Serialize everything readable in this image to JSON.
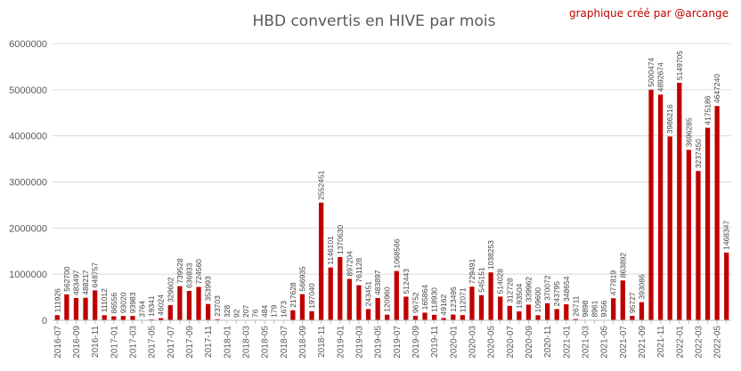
{
  "chart_data": {
    "type": "bar",
    "title": "HBD convertis en HIVE par mois",
    "credit": "graphique créé par @arcange",
    "ylim": [
      0,
      6000000
    ],
    "yticks": [
      "0",
      "1000000",
      "2000000",
      "3000000",
      "4000000",
      "5000000",
      "6000000"
    ],
    "grid": true,
    "color": "#c00000",
    "categories": [
      "2016-07",
      "2016-08",
      "2016-09",
      "2016-10",
      "2016-11",
      "2016-12",
      "2017-01",
      "2017-02",
      "2017-03",
      "2017-04",
      "2017-05",
      "2017-06",
      "2017-07",
      "2017-08",
      "2017-09",
      "2017-10",
      "2017-11",
      "2017-12",
      "2018-01",
      "2018-02",
      "2018-03",
      "2018-04",
      "2018-05",
      "2018-06",
      "2018-07",
      "2018-08",
      "2018-09",
      "2018-10",
      "2018-11",
      "2018-12",
      "2019-01",
      "2019-02",
      "2019-03",
      "2019-04",
      "2019-05",
      "2019-06",
      "2019-07",
      "2019-08",
      "2019-09",
      "2019-10",
      "2019-11",
      "2019-12",
      "2020-01",
      "2020-02",
      "2020-03",
      "2020-04",
      "2020-05",
      "2020-06",
      "2020-07",
      "2020-08",
      "2020-09",
      "2020-10",
      "2020-11",
      "2020-12",
      "2021-01",
      "2021-02",
      "2021-03",
      "2021-04",
      "2021-05",
      "2021-06",
      "2021-07",
      "2021-08",
      "2021-09",
      "2021-10",
      "2021-11",
      "2021-12",
      "2022-01",
      "2022-02",
      "2022-03",
      "2022-04",
      "2022-05",
      "2022-06"
    ],
    "xticklabels": [
      "2016-07",
      "2016-09",
      "2016-11",
      "2017-01",
      "2017-03",
      "2017-05",
      "2017-07",
      "2017-09",
      "2017-11",
      "2018-01",
      "2018-03",
      "2018-05",
      "2018-07",
      "2018-09",
      "2018-11",
      "2019-01",
      "2019-03",
      "2019-05",
      "2019-07",
      "2019-09",
      "2019-11",
      "2020-01",
      "2020-03",
      "2020-05",
      "2020-07",
      "2020-09",
      "2020-11",
      "2021-01",
      "2021-03",
      "2021-05",
      "2021-07",
      "2021-09",
      "2021-11",
      "2022-01",
      "2022-03",
      "2022-05"
    ],
    "values": [
      111926,
      562700,
      483497,
      488217,
      648757,
      111012,
      86556,
      93020,
      93983,
      3764,
      19341,
      46024,
      329602,
      739528,
      636933,
      724560,
      353993,
      23703,
      328,
      92,
      207,
      76,
      484,
      179,
      1673,
      217628,
      566935,
      197040,
      2552451,
      1146101,
      1370630,
      897204,
      761128,
      243451,
      483897,
      120960,
      1068566,
      512443,
      96752,
      165864,
      118930,
      49162,
      123495,
      112071,
      729491,
      545151,
      1038253,
      514028,
      312728,
      193504,
      339962,
      109600,
      370072,
      243795,
      348654,
      26711,
      9898,
      8961,
      9356,
      477819,
      863892,
      95727,
      393086,
      5000474,
      4892674,
      3986216,
      5149705,
      3696285,
      3237450,
      4175186,
      4647240,
      1468347
    ],
    "labels": [
      "111926",
      "562700",
      "483497",
      "488217",
      "648757",
      "111012",
      "86556",
      "93020",
      "93983",
      "3764",
      "19341",
      "46024",
      "329602",
      "739528",
      "636933",
      "724560",
      "353993",
      "23703",
      "328",
      "92",
      "207",
      "76",
      "484",
      "179",
      "1673",
      "217628",
      "566935",
      "197040",
      "2552451",
      "1146101",
      "1370630",
      "897204",
      "761128",
      "243451",
      "483897",
      "120960",
      "1068566",
      "512443",
      "96752",
      "165864",
      "118930",
      "49162",
      "123495",
      "112071",
      "729491",
      "545151",
      "1038253",
      "514028",
      "312728",
      "193504",
      "339962",
      "109600",
      "370072",
      "243795",
      "348654",
      "26711",
      "9898",
      "8961",
      "9356",
      "477819",
      "863892",
      "95727",
      "393086",
      "5000474",
      "4892674",
      "3986216",
      "5149705",
      "3696285",
      "3237450",
      "4175186",
      "4647240",
      "1468347"
    ]
  }
}
